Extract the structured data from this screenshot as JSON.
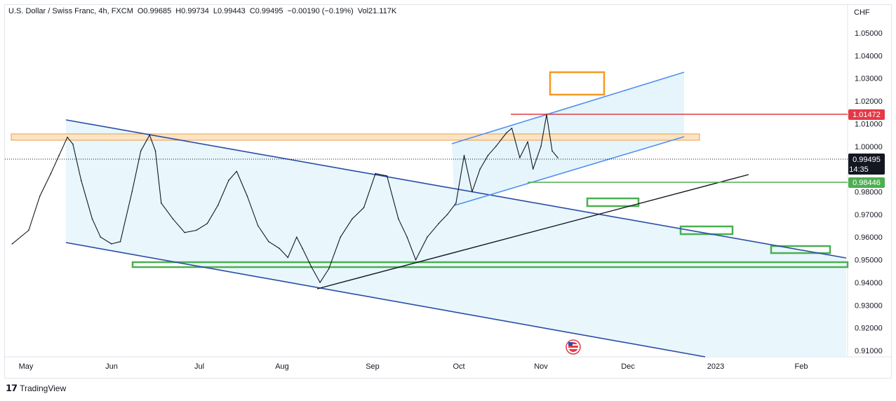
{
  "header": {
    "symbol": "U.S. Dollar / Swiss Franc, 4h, FXCM",
    "open": "O0.99685",
    "high": "H0.99734",
    "low": "L0.99443",
    "close": "C0.99495",
    "change": "−0.00190 (−0.19%)",
    "volume": "Vol21.117K"
  },
  "axis_unit": "CHF",
  "brand": "TradingView",
  "colors": {
    "channel_line": "#2a4ca8",
    "upper_channel_line": "#4f8ff0",
    "channel_fill": "#e3f4fb",
    "resistance_zone_fill": "#fde3c2",
    "resistance_zone_stroke": "#e6a04c",
    "target_box": "#f39a1f",
    "support_box": "#4caf50",
    "resistance_line": "#e53946",
    "support_line": "#4caf50",
    "trend_line": "#131722",
    "price_line": "#131722"
  },
  "chart_data": {
    "type": "line",
    "title": "U.S. Dollar / Swiss Franc, 4h, FXCM",
    "ylabel": "CHF",
    "ylim": [
      0.905,
      1.059
    ],
    "x_ticks": [
      "May",
      "Jun",
      "Jul",
      "Aug",
      "Sep",
      "Oct",
      "Nov",
      "Dec",
      "2023",
      "Feb"
    ],
    "y_ticks": [
      "1.05000",
      "1.04000",
      "1.03000",
      "1.02000",
      "1.01000",
      "1.00000",
      "0.99000",
      "0.98000",
      "0.97000",
      "0.96000",
      "0.95000",
      "0.94000",
      "0.93000",
      "0.92000",
      "0.91000"
    ],
    "y_tick_values": [
      1.05,
      1.04,
      1.03,
      1.02,
      1.01,
      1.0,
      0.99,
      0.98,
      0.97,
      0.96,
      0.95,
      0.94,
      0.93,
      0.92,
      0.91
    ],
    "grid": false,
    "series": [
      {
        "x": [
          "Apr 26",
          "May 2",
          "May 6",
          "May 10",
          "May 13",
          "May 16",
          "May 18",
          "May 21",
          "May 25",
          "May 28",
          "Jun 1",
          "Jun 4",
          "Jun 8",
          "Jun 11",
          "Jun 14",
          "Jun 16",
          "Jun 18",
          "Jun 22",
          "Jun 26",
          "Jun 30",
          "Jul 4",
          "Jul 8",
          "Jul 12",
          "Jul 15",
          "Jul 19",
          "Jul 23",
          "Jul 27",
          "Jul 31",
          "Aug 3",
          "Aug 6",
          "Aug 8",
          "Aug 11",
          "Aug 14",
          "Aug 17",
          "Aug 21",
          "Aug 25",
          "Aug 29",
          "Sep 2",
          "Sep 6",
          "Sep 10",
          "Sep 13",
          "Sep 16",
          "Sep 20",
          "Sep 24",
          "Sep 27",
          "Sep 30",
          "Oct 3",
          "Oct 6",
          "Oct 9",
          "Oct 12",
          "Oct 15",
          "Oct 19",
          "Oct 21",
          "Oct 24",
          "Oct 27",
          "Oct 29",
          "Nov 1",
          "Nov 3",
          "Nov 5",
          "Nov 7"
        ],
        "values": [
          0.957,
          0.963,
          0.978,
          0.988,
          0.996,
          1.004,
          1.001,
          0.985,
          0.968,
          0.96,
          0.957,
          0.958,
          0.98,
          0.998,
          1.005,
          0.998,
          0.975,
          0.968,
          0.962,
          0.963,
          0.966,
          0.974,
          0.985,
          0.989,
          0.978,
          0.965,
          0.958,
          0.955,
          0.951,
          0.96,
          0.955,
          0.947,
          0.94,
          0.946,
          0.96,
          0.968,
          0.973,
          0.988,
          0.987,
          0.968,
          0.96,
          0.95,
          0.96,
          0.966,
          0.97,
          0.975,
          0.996,
          0.98,
          0.99,
          0.996,
          1.0,
          1.006,
          1.008,
          0.995,
          1.002,
          0.99,
          1.0,
          1.014,
          0.998,
          0.995
        ]
      }
    ],
    "annotations": {
      "current_price": "0.99495",
      "countdown": "14:35",
      "resistance_level": "1.01472",
      "support_level": "0.98446"
    }
  }
}
